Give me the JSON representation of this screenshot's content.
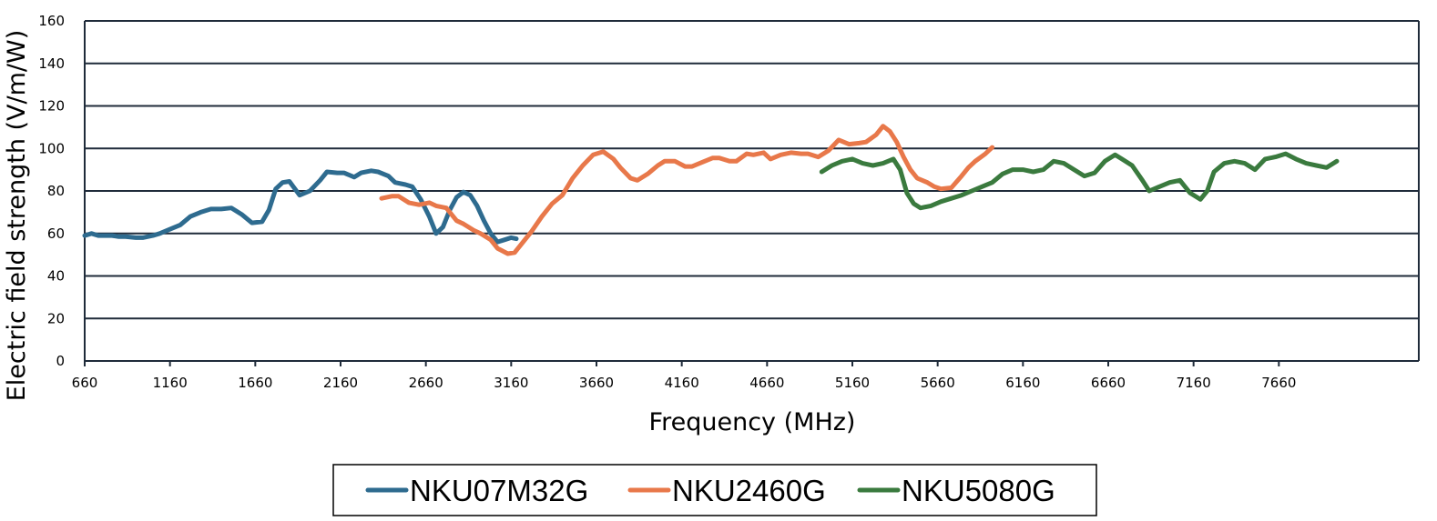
{
  "chart_data": {
    "type": "line",
    "title": "",
    "xlabel": "Frequency (MHz)",
    "ylabel": "Electric field strength (V/m/W)",
    "xlim": [
      660,
      8000
    ],
    "ylim": [
      0,
      160
    ],
    "x_ticks": [
      "660",
      "1160",
      "1660",
      "2160",
      "2660",
      "3160",
      "3660",
      "4160",
      "4660",
      "5160",
      "5660",
      "6160",
      "6660",
      "7160",
      "7660"
    ],
    "y_ticks": [
      "0",
      "20",
      "40",
      "60",
      "80",
      "100",
      "120",
      "140",
      "160"
    ],
    "grid": "horizontal",
    "legend_position": "bottom",
    "series": [
      {
        "name": "NKU07M32G",
        "color": "#2e6b8f",
        "x": [
          660,
          700,
          740,
          780,
          820,
          860,
          900,
          960,
          1000,
          1060,
          1100,
          1160,
          1220,
          1280,
          1340,
          1400,
          1460,
          1520,
          1580,
          1640,
          1700,
          1740,
          1780,
          1820,
          1860,
          1920,
          1980,
          2040,
          2080,
          2140,
          2180,
          2240,
          2280,
          2340,
          2380,
          2440,
          2480,
          2540,
          2580,
          2630,
          2680,
          2720,
          2760,
          2800,
          2840,
          2880,
          2920,
          2960,
          3000,
          3040,
          3080,
          3120,
          3160,
          3190
        ],
        "y": [
          59,
          60,
          59,
          59,
          59,
          58.5,
          58.5,
          58,
          58,
          59,
          60,
          62,
          64,
          68,
          70,
          71.5,
          71.5,
          72,
          69,
          65,
          65.5,
          71,
          81,
          84,
          84.5,
          78,
          80,
          85,
          89,
          88.5,
          88.5,
          86.5,
          88.5,
          89.5,
          89,
          87,
          84,
          83,
          82,
          76,
          68,
          60,
          63,
          71,
          77,
          79.5,
          78,
          73,
          66,
          60,
          56,
          57,
          58,
          57.5
        ]
      },
      {
        "name": "NKU2460G",
        "color": "#e8784a",
        "x": [
          2400,
          2460,
          2500,
          2560,
          2620,
          2680,
          2720,
          2780,
          2840,
          2880,
          2940,
          2980,
          3040,
          3080,
          3140,
          3180,
          3220,
          3280,
          3340,
          3400,
          3460,
          3520,
          3580,
          3640,
          3700,
          3760,
          3800,
          3860,
          3900,
          3960,
          4020,
          4060,
          4120,
          4180,
          4220,
          4280,
          4340,
          4380,
          4440,
          4480,
          4540,
          4580,
          4640,
          4680,
          4740,
          4800,
          4860,
          4900,
          4960,
          5020,
          5080,
          5140,
          5200,
          5240,
          5300,
          5340,
          5380,
          5420,
          5460,
          5500,
          5540,
          5600,
          5640,
          5680,
          5740,
          5800,
          5840,
          5880,
          5940,
          5980
        ],
        "y": [
          76.5,
          77.5,
          77.5,
          74.5,
          73.5,
          74.5,
          73,
          72,
          66,
          64.5,
          61.5,
          60,
          57,
          53,
          50.5,
          51,
          55,
          61,
          68,
          74,
          78,
          86,
          92,
          97,
          98.5,
          95,
          91,
          86,
          85,
          88,
          92,
          94,
          94,
          91.5,
          91.5,
          93.5,
          95.5,
          95.5,
          94,
          94,
          97.5,
          97,
          98,
          95,
          97,
          98,
          97.5,
          97.5,
          96,
          99,
          104,
          102,
          102.5,
          103,
          106.5,
          110.5,
          108,
          103,
          96,
          90,
          86,
          84,
          82,
          81,
          81.5,
          87,
          91,
          94,
          97.5,
          100.5
        ]
      },
      {
        "name": "NKU5080G",
        "color": "#3a7a3e",
        "x": [
          4980,
          5040,
          5100,
          5160,
          5220,
          5280,
          5340,
          5400,
          5440,
          5480,
          5520,
          5560,
          5620,
          5680,
          5740,
          5800,
          5860,
          5920,
          5980,
          6040,
          6100,
          6160,
          6220,
          6280,
          6340,
          6400,
          6460,
          6520,
          6580,
          6640,
          6700,
          6740,
          6800,
          6860,
          6900,
          6960,
          7020,
          7080,
          7140,
          7200,
          7240,
          7280,
          7340,
          7400,
          7460,
          7520,
          7580,
          7640,
          7700,
          7760,
          7820,
          7880,
          7940,
          8000
        ],
        "y": [
          89,
          92,
          94,
          95,
          93,
          92,
          93,
          95,
          90,
          79,
          74,
          72,
          73,
          75,
          76.5,
          78,
          80,
          82,
          84,
          88,
          90,
          90,
          89,
          90,
          94,
          93,
          90,
          87,
          88.5,
          94,
          97,
          95,
          92,
          85,
          80,
          82,
          84,
          85,
          79,
          76,
          80,
          89,
          93,
          94,
          93,
          90,
          95,
          96,
          97.5,
          95,
          93,
          92,
          91,
          94
        ]
      }
    ]
  }
}
